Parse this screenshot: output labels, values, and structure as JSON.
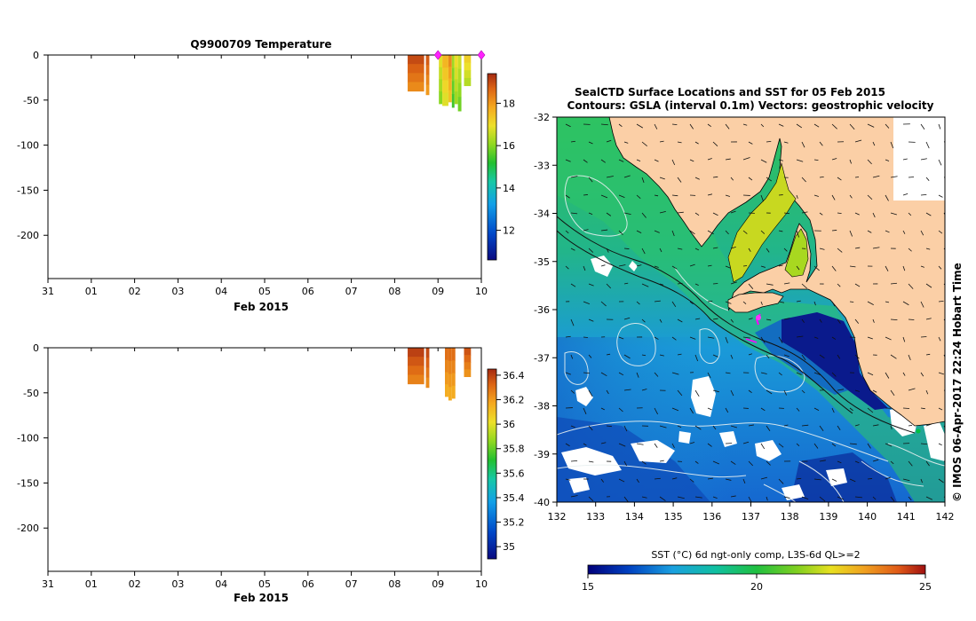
{
  "chart_data": [
    {
      "type": "heatmap",
      "id": "temperature-profile",
      "title": "Q9900709  Temperature",
      "xlabel": "Feb 2015",
      "x_ticks": [
        "31",
        "01",
        "02",
        "03",
        "04",
        "05",
        "06",
        "07",
        "08",
        "09",
        "10"
      ],
      "xlim_days": [
        0,
        10
      ],
      "y_ticks": [
        0,
        -50,
        -100,
        -150,
        -200
      ],
      "ylim": [
        -248,
        0
      ],
      "colorbar": {
        "min": 10.6,
        "max": 19.4,
        "ticks": [
          12,
          14,
          16,
          18
        ]
      },
      "profiles": [
        {
          "day": 8.3,
          "width": 0.38,
          "depth": 40,
          "value": 19.0
        },
        {
          "day": 8.72,
          "width": 0.08,
          "depth": 44,
          "value": 18.8
        },
        {
          "day": 9.02,
          "width": 0.08,
          "depth": 54,
          "value": 16.8
        },
        {
          "day": 9.1,
          "width": 0.14,
          "depth": 56,
          "value": 17.6
        },
        {
          "day": 9.24,
          "width": 0.08,
          "depth": 52,
          "value": 18.2
        },
        {
          "day": 9.32,
          "width": 0.06,
          "depth": 58,
          "value": 16.2
        },
        {
          "day": 9.38,
          "width": 0.08,
          "depth": 54,
          "value": 17.0
        },
        {
          "day": 9.46,
          "width": 0.08,
          "depth": 62,
          "value": 16.6
        },
        {
          "day": 9.6,
          "width": 0.16,
          "depth": 34,
          "value": 17.2
        }
      ],
      "surface_markers": [
        {
          "day": 9.0,
          "depth": 0
        },
        {
          "day": 10.0,
          "depth": 0
        }
      ]
    },
    {
      "type": "heatmap",
      "id": "salinity-profile",
      "title": "",
      "xlabel": "Feb 2015",
      "x_ticks": [
        "31",
        "01",
        "02",
        "03",
        "04",
        "05",
        "06",
        "07",
        "08",
        "09",
        "10"
      ],
      "xlim_days": [
        0,
        10
      ],
      "y_ticks": [
        0,
        -50,
        -100,
        -150,
        -200
      ],
      "ylim": [
        -248,
        0
      ],
      "colorbar": {
        "min": 34.9,
        "max": 36.45,
        "ticks": [
          35,
          35.2,
          35.4,
          35.6,
          35.8,
          36,
          36.2,
          36.4
        ]
      },
      "profiles": [
        {
          "day": 8.3,
          "width": 0.38,
          "depth": 40,
          "value": 36.4
        },
        {
          "day": 8.72,
          "width": 0.08,
          "depth": 44,
          "value": 36.38
        },
        {
          "day": 9.16,
          "width": 0.08,
          "depth": 54,
          "value": 36.3
        },
        {
          "day": 9.24,
          "width": 0.08,
          "depth": 58,
          "value": 36.3
        },
        {
          "day": 9.32,
          "width": 0.08,
          "depth": 56,
          "value": 36.3
        },
        {
          "day": 9.6,
          "width": 0.16,
          "depth": 32,
          "value": 36.36
        }
      ]
    },
    {
      "type": "heatmap",
      "id": "sst-map",
      "title": "SealCTD Surface Locations and SST for 05 Feb 2015",
      "subtitle": "Contours: GSLA (interval 0.1m) Vectors: geostrophic velocity",
      "x_ticks": [
        132,
        133,
        134,
        135,
        136,
        137,
        138,
        139,
        140,
        141,
        142
      ],
      "y_ticks": [
        -32,
        -33,
        -34,
        -35,
        -36,
        -37,
        -38,
        -39,
        -40
      ],
      "xlim": [
        132,
        142
      ],
      "ylim": [
        -40,
        -32
      ],
      "colorbar_label": "SST (°C) 6d ngt-only comp, L3S-6d QL>=2",
      "colorbar": {
        "min": 15,
        "max": 25,
        "ticks": [
          15,
          20,
          25
        ]
      },
      "credit": "© IMOS 06-Apr-2017 22:24 Hobart Time",
      "seal_track": [
        [
          137.3,
          -36.0
        ],
        [
          137.2,
          -36.1
        ],
        [
          137.1,
          -36.2
        ],
        [
          137.2,
          -36.3
        ]
      ]
    }
  ]
}
